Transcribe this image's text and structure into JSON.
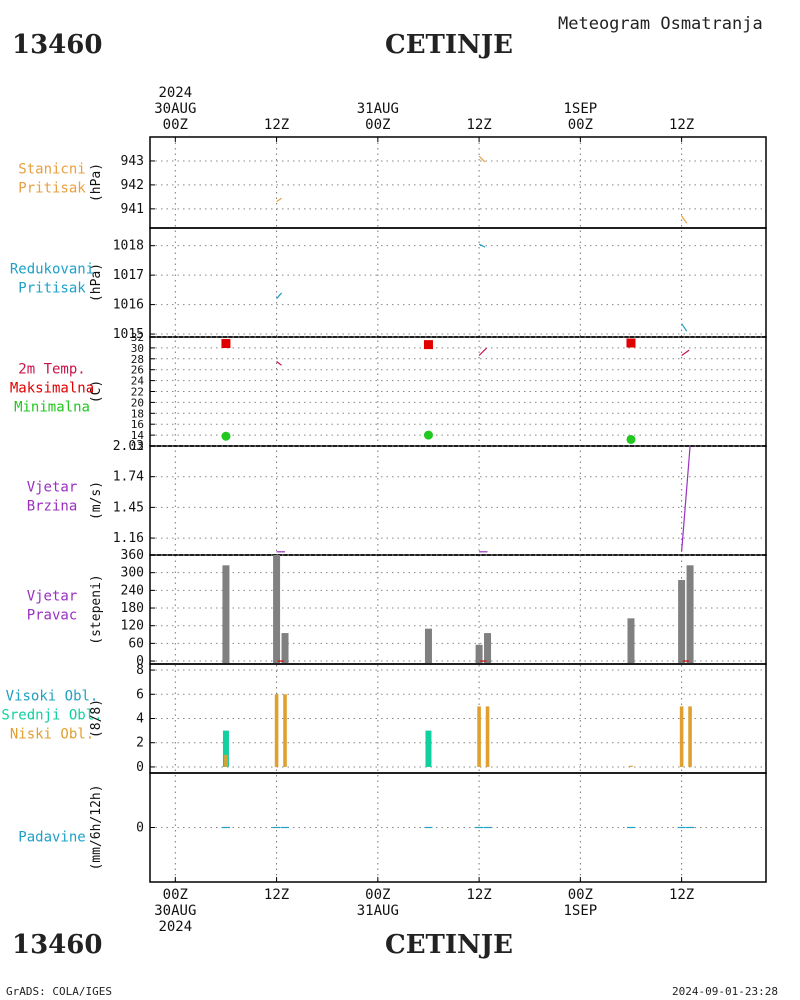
{
  "header": {
    "station_id": "13460",
    "station_name": "CETINJE",
    "product": "Meteogram Osmatranja",
    "footer_left": "GrADS: COLA/IGES",
    "footer_right": "2024-09-01-23:28"
  },
  "time_axis": {
    "top_labels": [
      {
        "hour": 0,
        "lines": [
          "2024",
          "30AUG",
          "00Z"
        ]
      },
      {
        "hour": 12,
        "lines": [
          "12Z"
        ]
      },
      {
        "hour": 24,
        "lines": [
          "31AUG",
          "00Z"
        ]
      },
      {
        "hour": 36,
        "lines": [
          "12Z"
        ]
      },
      {
        "hour": 48,
        "lines": [
          "1SEP",
          "00Z"
        ]
      },
      {
        "hour": 60,
        "lines": [
          "12Z"
        ]
      }
    ],
    "bottom_labels": [
      {
        "hour": 0,
        "lines": [
          "00Z",
          "30AUG",
          "2024"
        ]
      },
      {
        "hour": 12,
        "lines": [
          "12Z"
        ]
      },
      {
        "hour": 24,
        "lines": [
          "00Z",
          "31AUG"
        ]
      },
      {
        "hour": 36,
        "lines": [
          "12Z"
        ]
      },
      {
        "hour": 48,
        "lines": [
          "00Z",
          "1SEP"
        ]
      },
      {
        "hour": 60,
        "lines": [
          "12Z"
        ]
      }
    ],
    "range_hours": [
      -3,
      70
    ]
  },
  "colors": {
    "station_pressure": "#e8a040",
    "reduced_pressure": "#1ea0c8",
    "temp_label": "#c8144a",
    "tmax": "#e00000",
    "tmin": "#20c820",
    "wind": "#9a30c0",
    "wind_dir_bar": "#808080",
    "wind_dir_marker": "#e00000",
    "cloud_high": "#20a0c0",
    "cloud_mid": "#10d0a0",
    "cloud_low": "#e0a030",
    "precip": "#1ea0c8"
  },
  "chart_data": [
    {
      "name": "station_pressure",
      "type": "line",
      "labels": [
        "Stanicni",
        "Pritisak"
      ],
      "ylabel": "(hPa)",
      "ylim": [
        940.2,
        944.0
      ],
      "yticks": [
        941,
        942,
        943
      ],
      "segments": [
        [
          [
            12.0,
            941.3
          ],
          [
            12.6,
            941.45
          ]
        ],
        [
          [
            36.0,
            943.2
          ],
          [
            36.7,
            942.95
          ]
        ],
        [
          [
            60.0,
            940.7
          ],
          [
            60.6,
            940.4
          ]
        ]
      ]
    },
    {
      "name": "reduced_pressure",
      "type": "line",
      "labels": [
        "Redukovani",
        "Pritisak"
      ],
      "ylabel": "(hPa)",
      "ylim": [
        1014.9,
        1018.6
      ],
      "yticks": [
        1015,
        1016,
        1017,
        1018
      ],
      "segments": [
        [
          [
            12.0,
            1016.2
          ],
          [
            12.6,
            1016.4
          ]
        ],
        [
          [
            36.0,
            1018.05
          ],
          [
            36.7,
            1017.95
          ]
        ],
        [
          [
            60.0,
            1015.35
          ],
          [
            60.6,
            1015.1
          ]
        ]
      ]
    },
    {
      "name": "temperature",
      "type": "line",
      "labels": [
        "2m Temp.",
        "Maksimalna",
        "Minimalna"
      ],
      "ylabel": "(C)",
      "ylim": [
        12,
        32
      ],
      "yticks": [
        12,
        14,
        16,
        18,
        20,
        22,
        24,
        26,
        28,
        30,
        32
      ],
      "segments": [
        [
          [
            12.0,
            27.5
          ],
          [
            12.6,
            26.8
          ]
        ],
        [
          [
            36.0,
            28.6
          ],
          [
            36.9,
            30.0
          ]
        ],
        [
          [
            60.0,
            28.6
          ],
          [
            60.9,
            29.6
          ]
        ]
      ],
      "tmax": [
        [
          6,
          30.8
        ],
        [
          30,
          30.6
        ],
        [
          54,
          30.9
        ]
      ],
      "tmin": [
        [
          6,
          13.8
        ],
        [
          30,
          14.0
        ],
        [
          54,
          13.2
        ]
      ]
    },
    {
      "name": "wind_speed",
      "type": "line",
      "labels": [
        "Vjetar",
        "Brzina"
      ],
      "ylabel": "(m/s)",
      "ylim": [
        1.0,
        2.03
      ],
      "yticks": [
        1.16,
        1.45,
        1.74,
        2.03
      ],
      "segments": [
        [
          [
            12.0,
            1.03
          ],
          [
            13.0,
            1.03
          ]
        ],
        [
          [
            36.0,
            1.03
          ],
          [
            37.0,
            1.03
          ]
        ],
        [
          [
            60.0,
            1.03
          ],
          [
            61.0,
            2.03
          ]
        ]
      ]
    },
    {
      "name": "wind_direction",
      "type": "bar",
      "labels": [
        "Vjetar",
        "Pravac"
      ],
      "ylabel": "(stepeni)",
      "ylim": [
        -10,
        360
      ],
      "yticks": [
        0,
        60,
        120,
        180,
        240,
        300,
        360
      ],
      "bars": [
        [
          6,
          325
        ],
        [
          12,
          360
        ],
        [
          13,
          95
        ],
        [
          30,
          110
        ],
        [
          36,
          55
        ],
        [
          37,
          95
        ],
        [
          54,
          145
        ],
        [
          60,
          275
        ],
        [
          61,
          325
        ]
      ],
      "markers": [
        [
          12.5,
          0
        ],
        [
          36.5,
          0
        ],
        [
          60.5,
          0
        ]
      ]
    },
    {
      "name": "clouds",
      "type": "bar",
      "labels": [
        "Visoki Obl.",
        "Srednji Obl.",
        "Niski Obl."
      ],
      "ylabel": "(8/8)",
      "ylim": [
        -0.5,
        8.5
      ],
      "yticks": [
        0,
        2,
        4,
        6,
        8
      ],
      "high": [],
      "mid": [
        [
          6,
          3
        ],
        [
          30,
          3
        ]
      ],
      "low": [
        [
          6,
          1
        ],
        [
          12,
          6
        ],
        [
          13,
          6
        ],
        [
          36,
          5
        ],
        [
          37,
          5
        ],
        [
          54,
          0.1
        ],
        [
          60,
          5
        ],
        [
          61,
          5
        ]
      ]
    },
    {
      "name": "precip",
      "type": "bar",
      "labels": [
        "Padavine"
      ],
      "ylabel": "(mm/6h/12h)",
      "ylim": [
        -2,
        2
      ],
      "yticks": [
        0
      ],
      "values": [
        [
          6,
          0
        ],
        [
          12,
          0
        ],
        [
          13,
          0
        ],
        [
          30,
          0
        ],
        [
          36,
          0
        ],
        [
          37,
          0
        ],
        [
          54,
          0
        ],
        [
          60,
          0
        ],
        [
          61,
          0
        ]
      ]
    }
  ]
}
